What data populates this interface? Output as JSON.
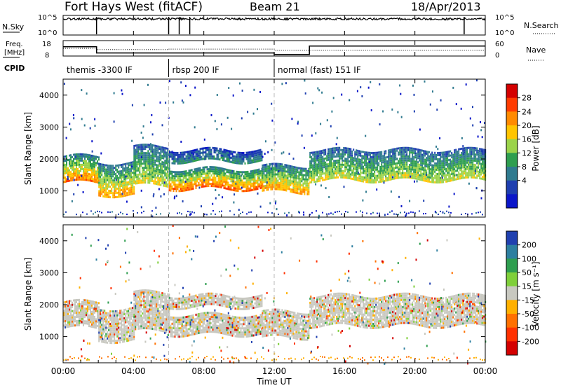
{
  "header": {
    "station": "Fort Hays West (fitACF)",
    "beam": "Beam 21",
    "date": "18/Apr/2013"
  },
  "noise_panel": {
    "left_label": "N.Sky",
    "right_label": "N.Search",
    "left_ticks": [
      "10^5",
      "10^0"
    ],
    "right_ticks": [
      "10^5",
      "10^0"
    ]
  },
  "freq_panel": {
    "left_label_1": "Freq.",
    "left_label_2": "[MHz]",
    "left_ticks": [
      "18",
      "8"
    ],
    "right_label": "Nave",
    "right_ticks": [
      "60",
      "0"
    ]
  },
  "cpid": {
    "label": "CPID",
    "segments": [
      {
        "start_hour": 0,
        "end_hour": 6,
        "text": "themis -3300 IF"
      },
      {
        "start_hour": 6,
        "end_hour": 12,
        "text": "rbsp 200 IF"
      },
      {
        "start_hour": 12,
        "end_hour": 24,
        "text": "normal (fast) 151 IF"
      }
    ]
  },
  "axes": {
    "x_label": "Time UT",
    "x_ticks": [
      "00:00",
      "04:00",
      "08:00",
      "12:00",
      "16:00",
      "20:00",
      "00:00"
    ],
    "x_tick_hours": [
      0,
      4,
      8,
      12,
      16,
      20,
      24
    ],
    "y_label": "Slant Range [km]",
    "y_ticks": [
      "4000",
      "3000",
      "2000",
      "1000"
    ],
    "y_tick_values": [
      4000,
      3000,
      2000,
      1000
    ],
    "x_range_hours": [
      0,
      24
    ],
    "y_range_km": [
      180,
      4500
    ]
  },
  "power_scale": {
    "label": "Power [dB]",
    "ticks": [
      "28",
      "24",
      "20",
      "16",
      "12",
      "8",
      "4"
    ],
    "colors": [
      "#d40000",
      "#ff3b00",
      "#ff8a00",
      "#ffc400",
      "#9bd34a",
      "#2e9e4f",
      "#2f7a8f",
      "#1e3fb0",
      "#0b16c9"
    ]
  },
  "velocity_scale": {
    "label": "Velocity [m s⁻¹]",
    "ticks": [
      "200",
      "100",
      "50",
      "15",
      "-15",
      "-50",
      "-100",
      "-200"
    ],
    "colors": [
      "#2040b0",
      "#2d7fa0",
      "#2e9e4f",
      "#7fcf3a",
      "#c8c8c0",
      "#ffb000",
      "#ff7000",
      "#ff3000",
      "#d40000"
    ]
  },
  "chart_data": {
    "type": "heatmap",
    "title": "Fort Hays West (fitACF)",
    "xlabel": "Time UT",
    "ylabel": "Slant Range [km]",
    "xlim_hours": [
      0,
      24
    ],
    "ylim_km": [
      180,
      4500
    ],
    "noise_sky_band_log10": [
      [
        0,
        4.1
      ],
      [
        24,
        4.1
      ]
    ],
    "freq_trace_mhz": [
      [
        0,
        14.0
      ],
      [
        1.9,
        14.0
      ],
      [
        1.9,
        10.0
      ],
      [
        12.0,
        10.0
      ],
      [
        12.0,
        9.0
      ],
      [
        14.0,
        9.0
      ],
      [
        14.0,
        14.5
      ],
      [
        24,
        14.5
      ]
    ],
    "nave_trace": [
      [
        0,
        30
      ],
      [
        1.9,
        30
      ],
      [
        1.9,
        25
      ],
      [
        6,
        25
      ],
      [
        6,
        27
      ],
      [
        12,
        27
      ],
      [
        12,
        22
      ],
      [
        24,
        22
      ]
    ],
    "echo_regions": [
      {
        "start_hour": 0.0,
        "end_hour": 2.0,
        "range_km": [
          1250,
          2100
        ],
        "power_db": 20
      },
      {
        "start_hour": 2.0,
        "end_hour": 4.0,
        "range_km": [
          900,
          1900
        ],
        "power_db": 18
      },
      {
        "start_hour": 4.0,
        "end_hour": 6.0,
        "range_km": [
          1200,
          2400
        ],
        "power_db": 14
      },
      {
        "start_hour": 6.0,
        "end_hour": 11.3,
        "range_km": [
          1050,
          1700
        ],
        "power_db": 22
      },
      {
        "start_hour": 6.0,
        "end_hour": 11.3,
        "range_km": [
          1950,
          2300
        ],
        "power_db": 8
      },
      {
        "start_hour": 11.3,
        "end_hour": 14.0,
        "range_km": [
          1000,
          1800
        ],
        "power_db": 18
      },
      {
        "start_hour": 14.0,
        "end_hour": 24.0,
        "range_km": [
          1350,
          2300
        ],
        "power_db": 14
      }
    ]
  }
}
